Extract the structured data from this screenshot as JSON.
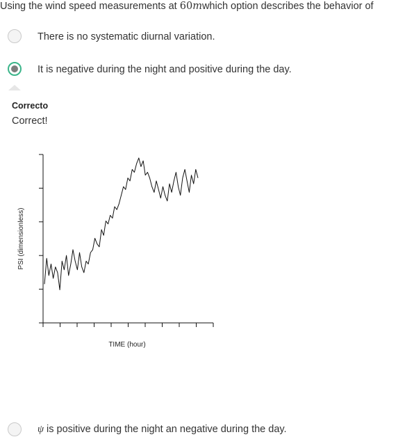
{
  "question": {
    "prefix": "Using the wind speed measurements at ",
    "math_number": "60",
    "math_unit": "m",
    "suffix": "which option describes the behavior of"
  },
  "options": [
    {
      "label": "There is no systematic diurnal variation.",
      "selected": false
    },
    {
      "label": "It is negative during the night and positive during the day.",
      "selected": true
    },
    {
      "symbol": "ψ",
      "label": " is positive during the night an negative during the day.",
      "selected": false
    }
  ],
  "feedback": {
    "title": "Correcto",
    "text": "Correct!"
  },
  "chart_data": {
    "type": "line",
    "xlabel": "TIME (hour)",
    "ylabel": "PSI (dimensionless)",
    "x_ticks": 11,
    "y_ticks": 6,
    "series": [
      {
        "values": [
          0.12,
          0.3,
          0.18,
          0.26,
          0.16,
          0.24,
          0.2,
          0.08,
          0.28,
          0.22,
          0.32,
          0.18,
          0.26,
          0.36,
          0.28,
          0.22,
          0.34,
          0.24,
          0.2,
          0.28,
          0.26,
          0.34,
          0.36,
          0.44,
          0.4,
          0.38,
          0.5,
          0.46,
          0.56,
          0.54,
          0.6,
          0.58,
          0.66,
          0.64,
          0.68,
          0.74,
          0.8,
          0.78,
          0.86,
          0.84,
          0.92,
          0.9,
          0.96,
          1.0,
          0.94,
          0.98,
          0.88,
          0.9,
          0.86,
          0.8,
          0.76,
          0.84,
          0.78,
          0.72,
          0.8,
          0.74,
          0.7,
          0.82,
          0.76,
          0.84,
          0.9,
          0.8,
          0.74,
          0.86,
          0.92,
          0.84,
          0.76,
          0.88,
          0.82,
          0.92,
          0.86
        ]
      }
    ]
  }
}
